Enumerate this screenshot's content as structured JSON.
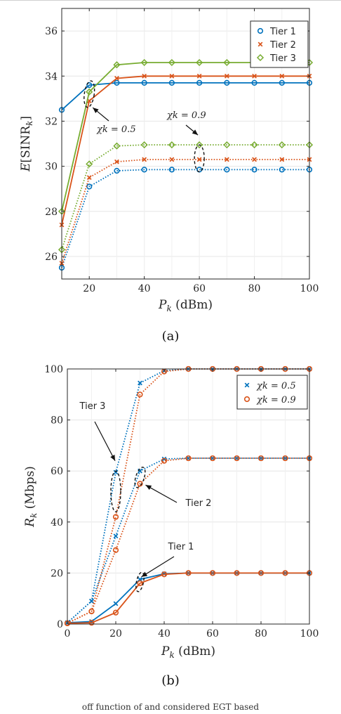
{
  "colors": {
    "tier1": "#0072BD",
    "tier2": "#D95319",
    "tier3": "#77AC30",
    "chi05": "#0072BD",
    "chi09": "#D95319"
  },
  "chart_data": [
    {
      "id": "a",
      "type": "line",
      "caption": "(a)",
      "xlabel": "P_k (dBm)",
      "ylabel": "E[SINR_k]",
      "xlim": [
        10,
        100
      ],
      "ylim": [
        25,
        37
      ],
      "xticks": [
        20,
        40,
        60,
        80,
        100
      ],
      "yticks": [
        26,
        28,
        30,
        32,
        34,
        36
      ],
      "grid": true,
      "legend_position": "top-right",
      "x": [
        10,
        20,
        30,
        40,
        50,
        60,
        70,
        80,
        90,
        100
      ],
      "series": [
        {
          "name": "Tier 1",
          "chi": "0.5",
          "style": "solid",
          "marker": "circle",
          "color": "#0072BD",
          "values": [
            32.5,
            33.6,
            33.7,
            33.7,
            33.7,
            33.7,
            33.7,
            33.7,
            33.7,
            33.7
          ]
        },
        {
          "name": "Tier 2",
          "chi": "0.5",
          "style": "solid",
          "marker": "x",
          "color": "#D95319",
          "values": [
            27.4,
            32.9,
            33.9,
            34.0,
            34.0,
            34.0,
            34.0,
            34.0,
            34.0,
            34.0
          ]
        },
        {
          "name": "Tier 3",
          "chi": "0.5",
          "style": "solid",
          "marker": "diamond",
          "color": "#77AC30",
          "values": [
            28.0,
            33.3,
            34.5,
            34.6,
            34.6,
            34.6,
            34.6,
            34.6,
            34.6,
            34.6
          ]
        },
        {
          "name": "Tier 1",
          "chi": "0.9",
          "style": "dotted",
          "marker": "circle",
          "color": "#0072BD",
          "values": [
            25.5,
            29.1,
            29.8,
            29.85,
            29.85,
            29.85,
            29.85,
            29.85,
            29.85,
            29.85
          ]
        },
        {
          "name": "Tier 2",
          "chi": "0.9",
          "style": "dotted",
          "marker": "x",
          "color": "#D95319",
          "values": [
            25.7,
            29.5,
            30.2,
            30.3,
            30.3,
            30.3,
            30.3,
            30.3,
            30.3,
            30.3
          ]
        },
        {
          "name": "Tier 3",
          "chi": "0.9",
          "style": "dotted",
          "marker": "diamond",
          "color": "#77AC30",
          "values": [
            26.3,
            30.1,
            30.9,
            30.95,
            30.95,
            30.95,
            30.95,
            30.95,
            30.95,
            30.95
          ]
        }
      ],
      "legend": [
        "Tier 1",
        "Tier 2",
        "Tier 3"
      ],
      "annotations": [
        {
          "text": "χk = 0.5",
          "target_x": 20,
          "target_y": 33.2
        },
        {
          "text": "χk = 0.9",
          "target_x": 60,
          "target_y": 30.35
        }
      ]
    },
    {
      "id": "b",
      "type": "line",
      "caption": "(b)",
      "xlabel": "P_k (dBm)",
      "ylabel": "R_k (Mbps)",
      "xlim": [
        0,
        100
      ],
      "ylim": [
        0,
        100
      ],
      "xticks": [
        0,
        20,
        40,
        60,
        80,
        100
      ],
      "yticks": [
        0,
        20,
        40,
        60,
        80,
        100
      ],
      "grid": true,
      "legend_position": "top-right",
      "x": [
        0,
        10,
        20,
        30,
        40,
        50,
        60,
        70,
        80,
        90,
        100
      ],
      "series": [
        {
          "name": "χk = 0.5",
          "tier": "Tier 1",
          "style": "solid",
          "marker": "x",
          "color": "#0072BD",
          "values": [
            0.5,
            1,
            8,
            17.5,
            19.7,
            20,
            20,
            20,
            20,
            20,
            20
          ]
        },
        {
          "name": "χk = 0.9",
          "tier": "Tier 1",
          "style": "solid",
          "marker": "circle",
          "color": "#D95319",
          "values": [
            0.3,
            0.5,
            4.5,
            16,
            19.5,
            20,
            20,
            20,
            20,
            20,
            20
          ]
        },
        {
          "name": "χk = 0.5",
          "tier": "Tier 2",
          "style": "dotted",
          "marker": "x",
          "color": "#0072BD",
          "values": [
            0.5,
            9,
            34.5,
            60,
            64.7,
            65,
            65,
            65,
            65,
            65,
            65
          ]
        },
        {
          "name": "χk = 0.9",
          "tier": "Tier 2",
          "style": "dotted",
          "marker": "circle",
          "color": "#D95319",
          "values": [
            0.3,
            5,
            29,
            55,
            64,
            65,
            65,
            65,
            65,
            65,
            65
          ]
        },
        {
          "name": "χk = 0.5",
          "tier": "Tier 3",
          "style": "dotted",
          "marker": "x",
          "color": "#0072BD",
          "values": [
            0.5,
            9,
            59.5,
            94.5,
            99.3,
            100,
            100,
            100,
            100,
            100,
            100
          ]
        },
        {
          "name": "χk = 0.9",
          "tier": "Tier 3",
          "style": "dotted",
          "marker": "circle",
          "color": "#D95319",
          "values": [
            0.3,
            5,
            42,
            90,
            99,
            100,
            100,
            100,
            100,
            100,
            100
          ]
        }
      ],
      "legend": [
        "χk = 0.5",
        "χk = 0.9"
      ],
      "annotations": [
        {
          "text": "Tier 3",
          "target_x": 20,
          "target_y": 55
        },
        {
          "text": "Tier 2",
          "target_x": 30,
          "target_y": 56
        },
        {
          "text": "Tier 1",
          "target_x": 30,
          "target_y": 18
        }
      ]
    }
  ],
  "footer_text": "off function of and considered EGT based"
}
